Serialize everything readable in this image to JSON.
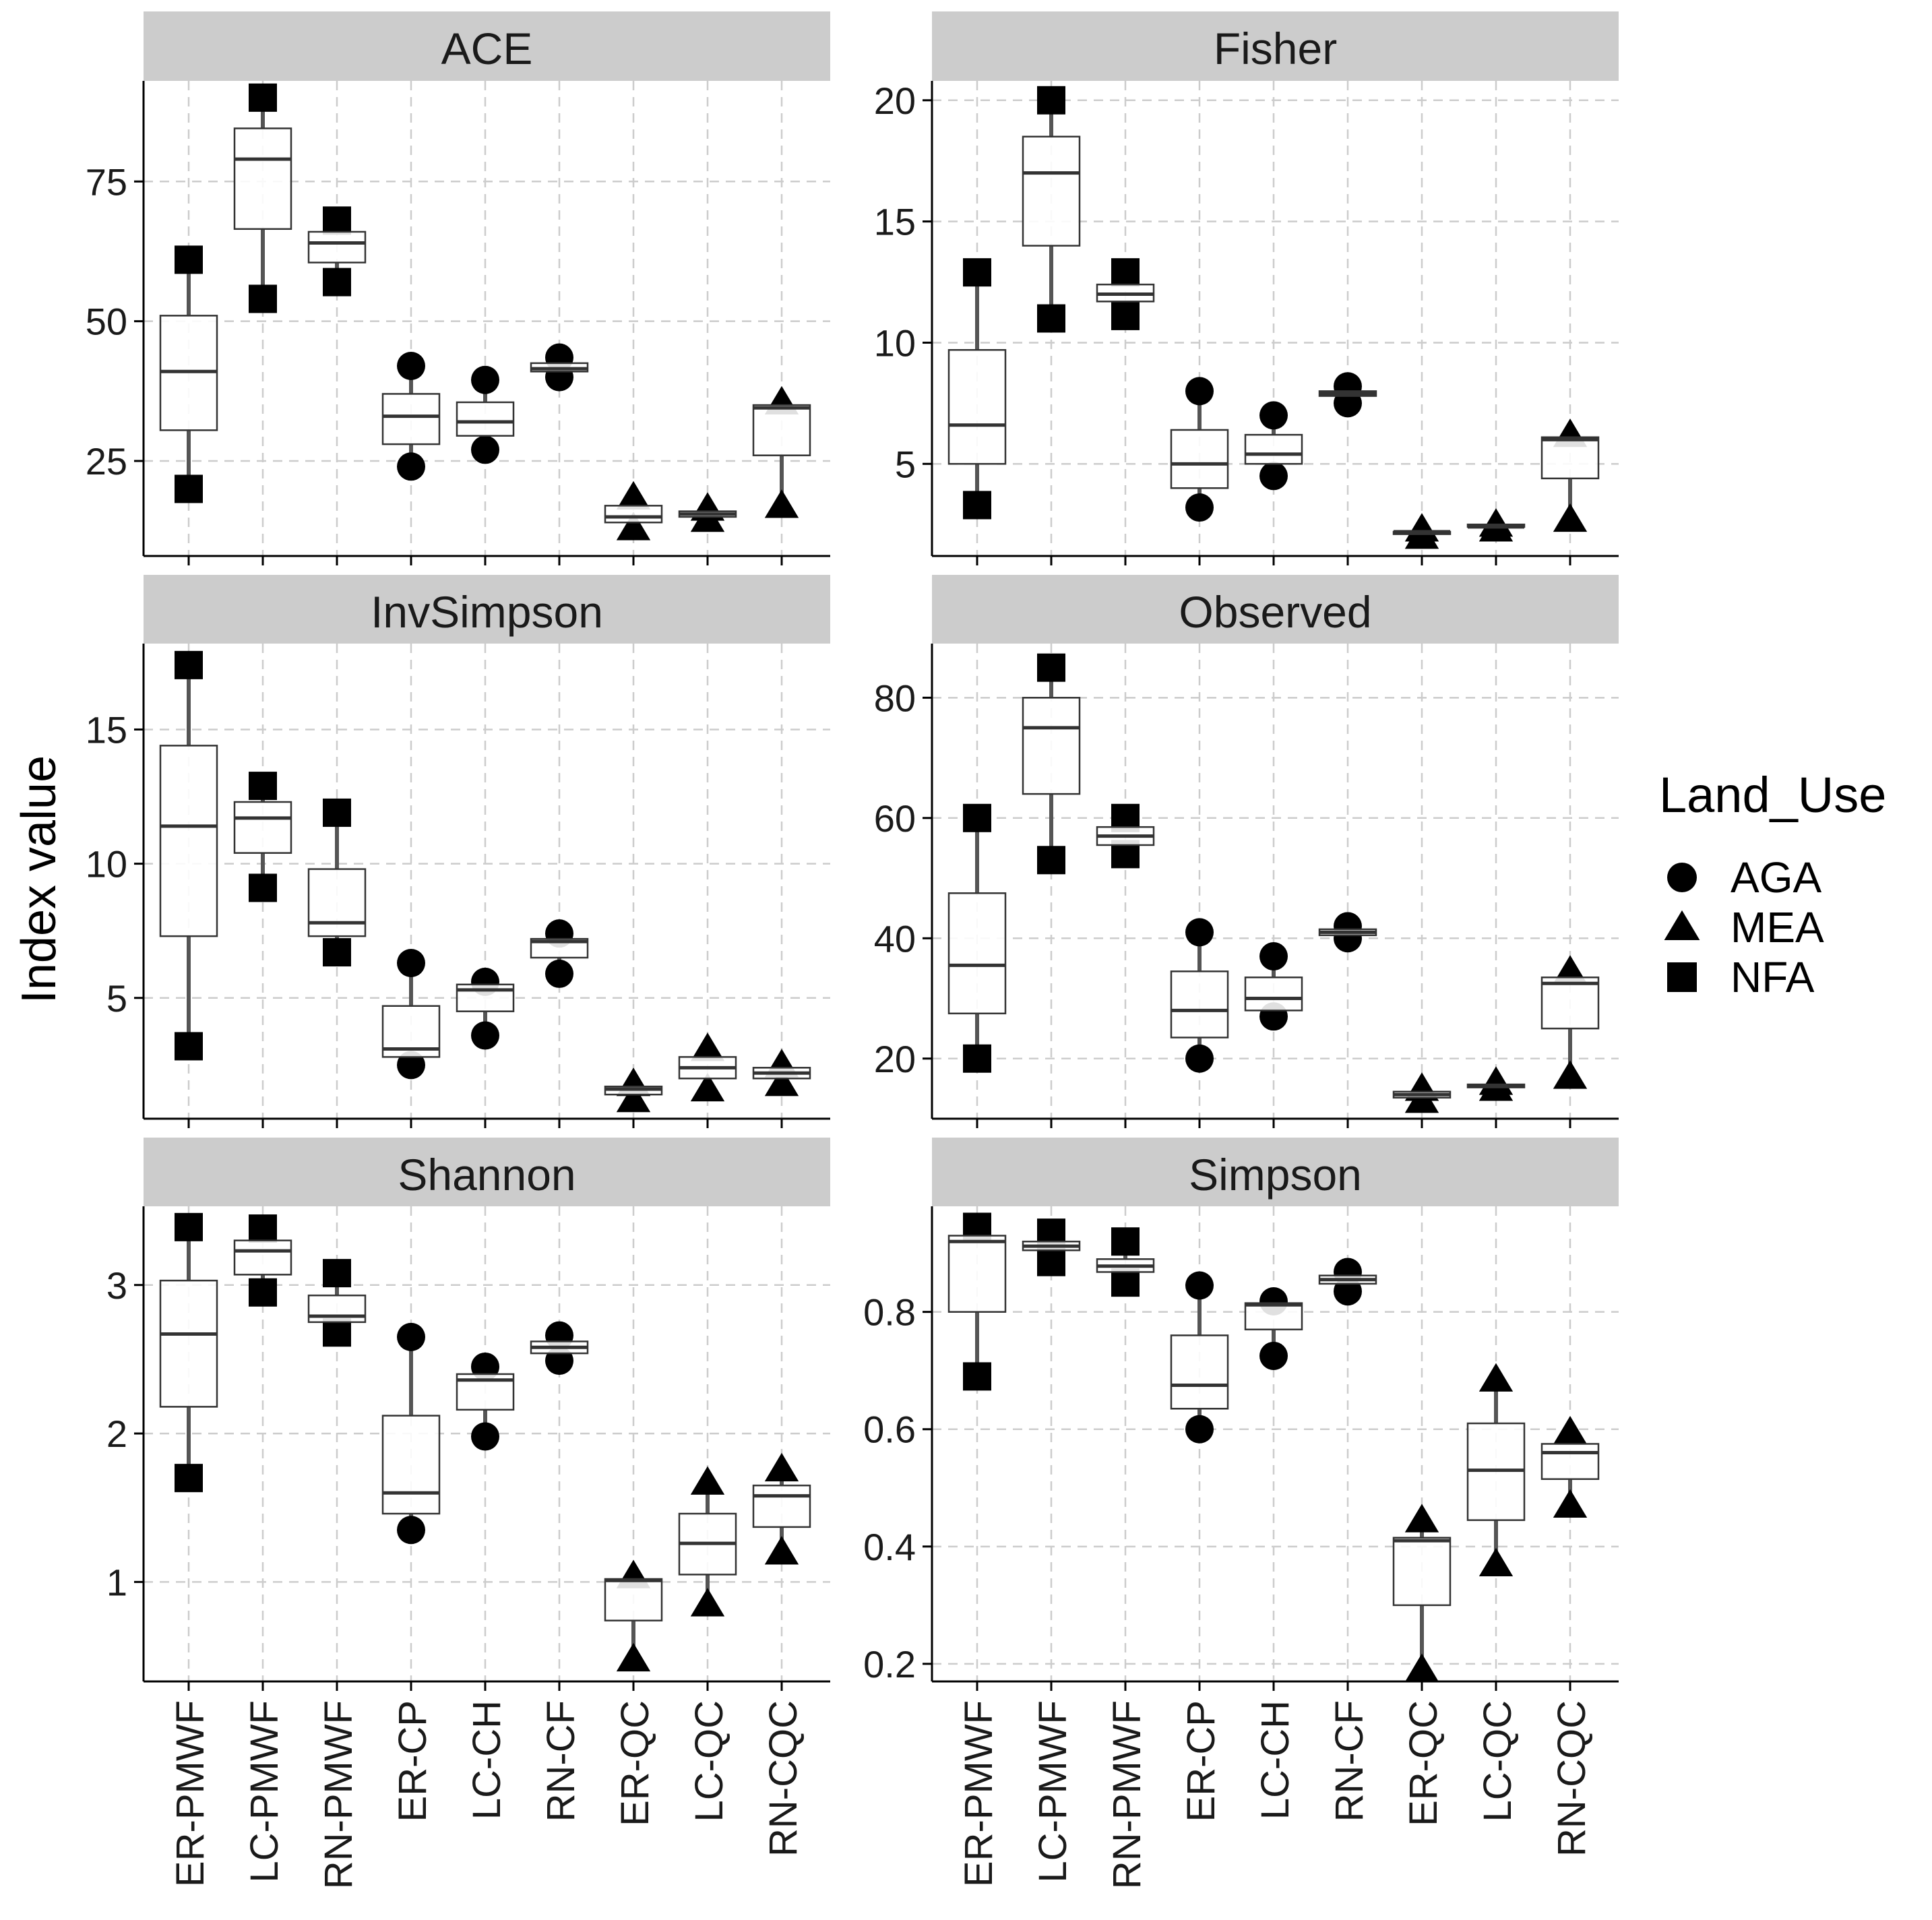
{
  "chart_data": {
    "type": "box",
    "ylabel": "Index value",
    "categories": [
      "ER-PMWF",
      "LC-PMWF",
      "RN-PMWF",
      "ER-CP",
      "LC-CH",
      "RN-CF",
      "ER-QC",
      "LC-QC",
      "RN-CQC"
    ],
    "category_group": [
      "NFA",
      "NFA",
      "NFA",
      "AGA",
      "AGA",
      "AGA",
      "MEA",
      "MEA",
      "MEA"
    ],
    "legend": {
      "title": "Land_Use",
      "items": [
        "AGA",
        "MEA",
        "NFA"
      ],
      "shapes": [
        "circle",
        "triangle",
        "square"
      ],
      "position": "right"
    },
    "colors": {
      "strip": "#cccccc",
      "grid": "#cccccc",
      "box_fill": "#ffffff",
      "median": "#333333",
      "marker": "#000000",
      "axis": "#000000"
    },
    "panels": [
      {
        "title": "ACE",
        "ylim": [
          8,
          93
        ],
        "ticks": [
          25,
          50,
          75
        ],
        "boxes": [
          {
            "min": 20,
            "q1": 30.5,
            "median": 41,
            "q3": 51,
            "max": 61
          },
          {
            "min": 54,
            "q1": 66.5,
            "median": 79,
            "q3": 84.5,
            "max": 90
          },
          {
            "min": 57,
            "q1": 60.5,
            "median": 64,
            "q3": 66,
            "max": 68
          },
          {
            "min": 24,
            "q1": 28,
            "median": 33,
            "q3": 37,
            "max": 42
          },
          {
            "min": 27,
            "q1": 29.5,
            "median": 32,
            "q3": 35.5,
            "max": 39.5
          },
          {
            "min": 40,
            "q1": 41,
            "median": 41.5,
            "q3": 42.5,
            "max": 43.5
          },
          {
            "min": 13,
            "q1": 14,
            "median": 15,
            "q3": 17,
            "max": 18.5
          },
          {
            "min": 14.5,
            "q1": 15,
            "median": 15.5,
            "q3": 16,
            "max": 16.5
          },
          {
            "min": 17,
            "q1": 26,
            "median": 34.5,
            "q3": 35,
            "max": 35.5
          }
        ]
      },
      {
        "title": "Fisher",
        "ylim": [
          1.2,
          20.8
        ],
        "ticks": [
          5,
          10,
          15,
          20
        ],
        "boxes": [
          {
            "min": 3.3,
            "q1": 5,
            "median": 6.6,
            "q3": 9.7,
            "max": 12.9
          },
          {
            "min": 11,
            "q1": 14,
            "median": 17,
            "q3": 18.5,
            "max": 20
          },
          {
            "min": 11.1,
            "q1": 11.7,
            "median": 12,
            "q3": 12.4,
            "max": 12.9
          },
          {
            "min": 3.2,
            "q1": 4,
            "median": 5,
            "q3": 6.4,
            "max": 8
          },
          {
            "min": 4.5,
            "q1": 5,
            "median": 5.4,
            "q3": 6.2,
            "max": 7
          },
          {
            "min": 7.5,
            "q1": 7.8,
            "median": 7.9,
            "q3": 8,
            "max": 8.2
          },
          {
            "min": 2,
            "q1": 2.1,
            "median": 2.2,
            "q3": 2.2,
            "max": 2.3
          },
          {
            "min": 2.3,
            "q1": 2.4,
            "median": 2.4,
            "q3": 2.5,
            "max": 2.5
          },
          {
            "min": 2.7,
            "q1": 4.4,
            "median": 6,
            "q3": 6.1,
            "max": 6.2
          }
        ]
      },
      {
        "title": "InvSimpson",
        "ylim": [
          0.5,
          18.2
        ],
        "ticks": [
          5,
          10,
          15
        ],
        "boxes": [
          {
            "min": 3.2,
            "q1": 7.3,
            "median": 11.4,
            "q3": 14.4,
            "max": 17.4
          },
          {
            "min": 9.1,
            "q1": 10.4,
            "median": 11.7,
            "q3": 12.3,
            "max": 12.9
          },
          {
            "min": 6.7,
            "q1": 7.3,
            "median": 7.8,
            "q3": 9.8,
            "max": 11.9
          },
          {
            "min": 2.5,
            "q1": 2.8,
            "median": 3.1,
            "q3": 4.7,
            "max": 6.3
          },
          {
            "min": 3.6,
            "q1": 4.5,
            "median": 5.3,
            "q3": 5.5,
            "max": 5.6
          },
          {
            "min": 5.9,
            "q1": 6.5,
            "median": 7.1,
            "q3": 7.2,
            "max": 7.4
          },
          {
            "min": 1.2,
            "q1": 1.4,
            "median": 1.6,
            "q3": 1.7,
            "max": 1.8
          },
          {
            "min": 1.6,
            "q1": 2,
            "median": 2.4,
            "q3": 2.8,
            "max": 3.1
          },
          {
            "min": 1.8,
            "q1": 2,
            "median": 2.2,
            "q3": 2.4,
            "max": 2.5
          }
        ]
      },
      {
        "title": "Observed",
        "ylim": [
          10,
          89
        ],
        "ticks": [
          20,
          40,
          60,
          80
        ],
        "boxes": [
          {
            "min": 20,
            "q1": 27.5,
            "median": 35.5,
            "q3": 47.5,
            "max": 60
          },
          {
            "min": 53,
            "q1": 64,
            "median": 75,
            "q3": 80,
            "max": 85
          },
          {
            "min": 54,
            "q1": 55.5,
            "median": 57,
            "q3": 58.5,
            "max": 60
          },
          {
            "min": 20,
            "q1": 23.5,
            "median": 28,
            "q3": 34.5,
            "max": 41
          },
          {
            "min": 27,
            "q1": 28,
            "median": 30,
            "q3": 33.5,
            "max": 37
          },
          {
            "min": 40,
            "q1": 40.5,
            "median": 41,
            "q3": 41.5,
            "max": 42
          },
          {
            "min": 13,
            "q1": 13.5,
            "median": 14,
            "q3": 14.5,
            "max": 15
          },
          {
            "min": 15,
            "q1": 15.2,
            "median": 15.5,
            "q3": 15.7,
            "max": 16
          },
          {
            "min": 17,
            "q1": 25,
            "median": 32.5,
            "q3": 33.5,
            "max": 34.5
          }
        ]
      },
      {
        "title": "Shannon",
        "ylim": [
          0.33,
          3.53
        ],
        "ticks": [
          1,
          2,
          3
        ],
        "boxes": [
          {
            "min": 1.7,
            "q1": 2.18,
            "median": 2.67,
            "q3": 3.03,
            "max": 3.39
          },
          {
            "min": 2.95,
            "q1": 3.07,
            "median": 3.23,
            "q3": 3.3,
            "max": 3.38
          },
          {
            "min": 2.68,
            "q1": 2.75,
            "median": 2.79,
            "q3": 2.93,
            "max": 3.08
          },
          {
            "min": 1.35,
            "q1": 1.46,
            "median": 1.6,
            "q3": 2.12,
            "max": 2.65
          },
          {
            "min": 1.98,
            "q1": 2.16,
            "median": 2.36,
            "q3": 2.4,
            "max": 2.45
          },
          {
            "min": 2.49,
            "q1": 2.54,
            "median": 2.58,
            "q3": 2.62,
            "max": 2.66
          },
          {
            "min": 0.48,
            "q1": 0.74,
            "median": 1.01,
            "q3": 1.02,
            "max": 1.04
          },
          {
            "min": 0.85,
            "q1": 1.05,
            "median": 1.26,
            "q3": 1.46,
            "max": 1.67
          },
          {
            "min": 1.2,
            "q1": 1.37,
            "median": 1.58,
            "q3": 1.65,
            "max": 1.76
          }
        ]
      },
      {
        "title": "Simpson",
        "ylim": [
          0.17,
          0.98
        ],
        "ticks": [
          0.2,
          0.4,
          0.6,
          0.8
        ],
        "boxes": [
          {
            "min": 0.69,
            "q1": 0.8,
            "median": 0.92,
            "q3": 0.93,
            "max": 0.945
          },
          {
            "min": 0.885,
            "q1": 0.905,
            "median": 0.912,
            "q3": 0.92,
            "max": 0.935
          },
          {
            "min": 0.85,
            "q1": 0.868,
            "median": 0.878,
            "q3": 0.89,
            "max": 0.92
          },
          {
            "min": 0.6,
            "q1": 0.635,
            "median": 0.675,
            "q3": 0.76,
            "max": 0.845
          },
          {
            "min": 0.725,
            "q1": 0.77,
            "median": 0.812,
            "q3": 0.815,
            "max": 0.818
          },
          {
            "min": 0.835,
            "q1": 0.848,
            "median": 0.855,
            "q3": 0.862,
            "max": 0.868
          },
          {
            "min": 0.19,
            "q1": 0.3,
            "median": 0.41,
            "q3": 0.415,
            "max": 0.445
          },
          {
            "min": 0.37,
            "q1": 0.445,
            "median": 0.53,
            "q3": 0.61,
            "max": 0.685
          },
          {
            "min": 0.47,
            "q1": 0.515,
            "median": 0.56,
            "q3": 0.575,
            "max": 0.595
          }
        ]
      }
    ]
  }
}
